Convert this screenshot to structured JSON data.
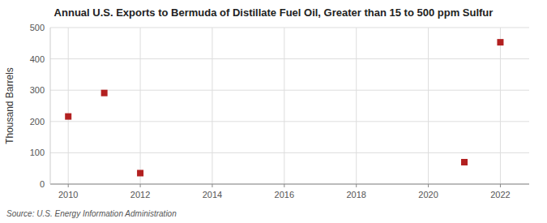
{
  "chart_data": {
    "type": "scatter",
    "title": "Annual U.S. Exports to Bermuda of Distillate Fuel Oil, Greater than 15 to 500 ppm Sulfur",
    "y_label": "Thousand Barrels",
    "source": "Source: U.S. Energy Information Administration",
    "x": [
      2010,
      2011,
      2012,
      2021,
      2022
    ],
    "values": [
      216,
      291,
      35,
      70,
      453
    ],
    "xlim": [
      2009.5,
      2022.8
    ],
    "ylim": [
      0,
      500
    ],
    "xticks": [
      2010,
      2012,
      2014,
      2016,
      2018,
      2020,
      2022
    ],
    "yticks": [
      0,
      100,
      200,
      300,
      400,
      500
    ],
    "color": "#b22020",
    "marker": "square",
    "grid": true
  }
}
